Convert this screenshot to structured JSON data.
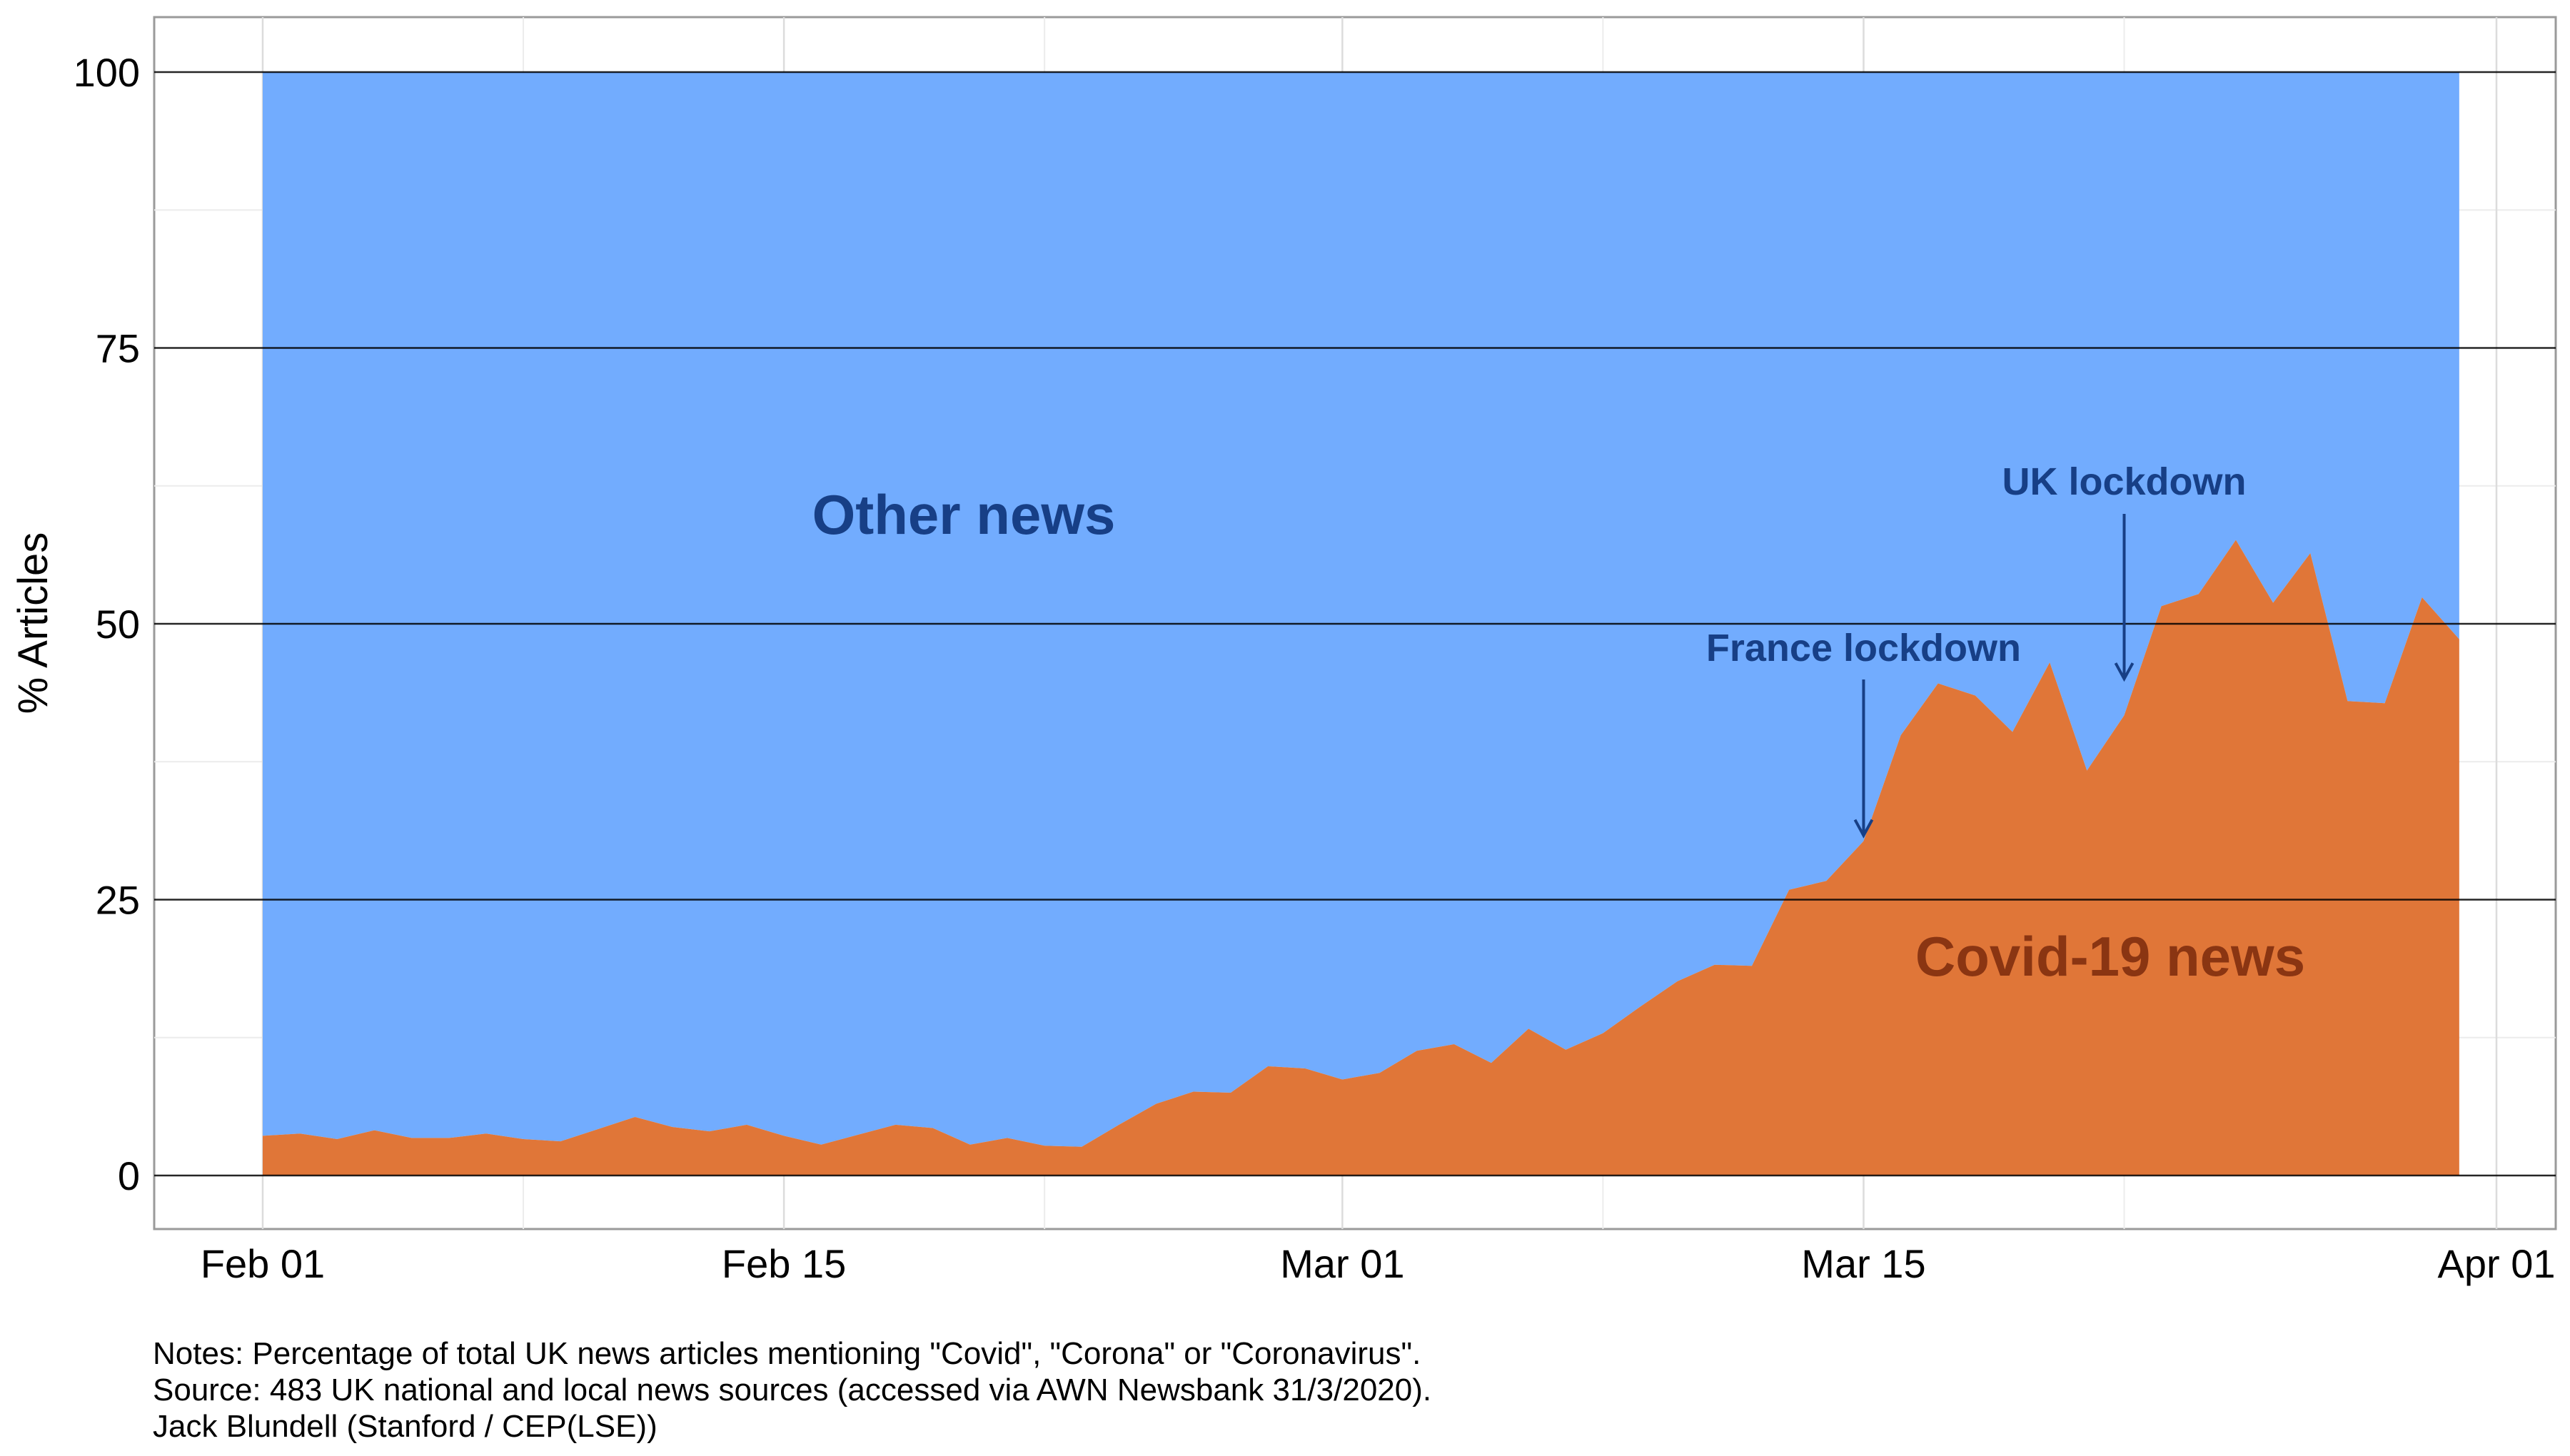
{
  "chart_data": {
    "type": "area",
    "title": "",
    "xlabel": "",
    "ylabel": "% Articles",
    "x_ticks": [
      "Feb 01",
      "Feb 15",
      "Mar 01",
      "Mar 15",
      "Apr 01"
    ],
    "y_ticks": [
      0,
      25,
      50,
      75,
      100
    ],
    "ylim": [
      0,
      100
    ],
    "grid": true,
    "legend": "none",
    "x": [
      "2020-02-01",
      "2020-02-02",
      "2020-02-03",
      "2020-02-04",
      "2020-02-05",
      "2020-02-06",
      "2020-02-07",
      "2020-02-08",
      "2020-02-09",
      "2020-02-10",
      "2020-02-11",
      "2020-02-12",
      "2020-02-13",
      "2020-02-14",
      "2020-02-15",
      "2020-02-16",
      "2020-02-17",
      "2020-02-18",
      "2020-02-19",
      "2020-02-20",
      "2020-02-21",
      "2020-02-22",
      "2020-02-23",
      "2020-02-24",
      "2020-02-25",
      "2020-02-26",
      "2020-02-27",
      "2020-02-28",
      "2020-02-29",
      "2020-03-01",
      "2020-03-02",
      "2020-03-03",
      "2020-03-04",
      "2020-03-05",
      "2020-03-06",
      "2020-03-07",
      "2020-03-08",
      "2020-03-09",
      "2020-03-10",
      "2020-03-11",
      "2020-03-12",
      "2020-03-13",
      "2020-03-14",
      "2020-03-15",
      "2020-03-16",
      "2020-03-17",
      "2020-03-18",
      "2020-03-19",
      "2020-03-20",
      "2020-03-21",
      "2020-03-22",
      "2020-03-23",
      "2020-03-24",
      "2020-03-25",
      "2020-03-26",
      "2020-03-27",
      "2020-03-28",
      "2020-03-29",
      "2020-03-30",
      "2020-03-31"
    ],
    "series": [
      {
        "name": "Covid-19 news",
        "color": "#E07638",
        "values": [
          3.6,
          3.8,
          3.3,
          4.1,
          3.4,
          3.4,
          3.8,
          3.3,
          3.1,
          4.2,
          5.3,
          4.4,
          4.0,
          4.6,
          3.6,
          2.8,
          3.7,
          4.6,
          4.3,
          2.8,
          3.4,
          2.7,
          2.6,
          4.6,
          6.5,
          7.6,
          7.5,
          9.9,
          9.7,
          8.7,
          9.3,
          11.3,
          11.9,
          10.2,
          13.3,
          11.4,
          12.9,
          15.3,
          17.6,
          19.1,
          19.0,
          25.9,
          26.7,
          30.3,
          39.9,
          44.6,
          43.5,
          40.2,
          46.5,
          36.7,
          41.7,
          51.6,
          52.7,
          57.6,
          51.9,
          56.4,
          43.0,
          42.8,
          52.4,
          48.6
        ]
      },
      {
        "name": "Other news",
        "color": "#72ACFE",
        "values": [
          96.4,
          96.2,
          96.7,
          95.9,
          96.6,
          96.6,
          96.2,
          96.7,
          96.9,
          95.8,
          94.7,
          95.6,
          96.0,
          95.4,
          96.4,
          97.2,
          96.3,
          95.4,
          95.7,
          97.2,
          96.6,
          97.3,
          97.4,
          95.4,
          93.5,
          92.4,
          92.5,
          90.1,
          90.3,
          91.3,
          90.7,
          88.7,
          88.1,
          89.8,
          86.7,
          88.6,
          87.1,
          84.7,
          82.4,
          80.9,
          81.0,
          74.1,
          73.3,
          69.7,
          60.1,
          55.4,
          56.5,
          59.8,
          53.5,
          63.3,
          58.3,
          48.4,
          47.3,
          42.4,
          48.1,
          43.6,
          57.0,
          57.2,
          47.6,
          51.4
        ]
      }
    ],
    "labels": {
      "other": "Other news",
      "covid": "Covid-19 news"
    },
    "annotations": [
      {
        "text": "France lockdown",
        "x": "2020-03-15",
        "y": 30.3
      },
      {
        "text": "UK lockdown",
        "x": "2020-03-22",
        "y": 44.5
      }
    ],
    "notes": [
      "Notes: Percentage of total UK news articles mentioning \"Covid\", \"Corona\" or \"Coronavirus\".",
      "Source: 483 UK national and local news sources (accessed via AWN Newsbank 31/3/2020).",
      "Jack Blundell (Stanford / CEP(LSE))"
    ],
    "colors": {
      "covid": "#E07638",
      "other": "#72ACFE",
      "other_label": "#173F86",
      "covid_label": "#8A3512",
      "annotation": "#173F86"
    }
  }
}
